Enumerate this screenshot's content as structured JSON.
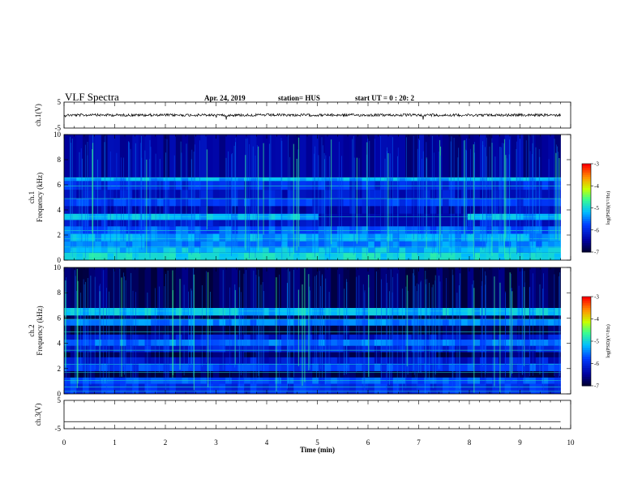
{
  "header": {
    "title": "VLF Spectra",
    "date": "Apr. 24, 2019",
    "station": "station= HUS",
    "start": "start UT =  0 : 20: 2"
  },
  "chart_data": {
    "type": "heatmap",
    "xlabel": "Time (min)",
    "x_ticks": [
      "0",
      "1",
      "2",
      "3",
      "4",
      "5",
      "6",
      "7",
      "8",
      "9",
      "10"
    ],
    "xlim": [
      0,
      10
    ],
    "data_end_min": 9.8,
    "panels": [
      {
        "name": "ch.1 waveform",
        "type": "line",
        "ylabel": "ch.1(V)",
        "ylim": [
          -5,
          5
        ],
        "y_ticks": [
          "5",
          "-5"
        ],
        "baseline": 0
      },
      {
        "name": "ch.1 spectrogram",
        "type": "heatmap",
        "ylabel_top": "ch.1",
        "ylabel": "Frequency (kHz)",
        "ylim": [
          0,
          10
        ],
        "y_ticks": [
          "0",
          "2",
          "4",
          "6",
          "8",
          "10"
        ],
        "colorbar": {
          "label": "log(PSD)(V²/Hz)",
          "range": [
            -7,
            -3
          ],
          "ticks": [
            "-3",
            "-4",
            "-5",
            "-6",
            "-7"
          ]
        },
        "bands": [
          {
            "from": 0.0,
            "to": 0.6,
            "level": 0.5
          },
          {
            "from": 0.6,
            "to": 1.0,
            "level": 0.45
          },
          {
            "from": 1.0,
            "to": 1.5,
            "level": 0.38
          },
          {
            "from": 1.5,
            "to": 2.1,
            "level": 0.42
          },
          {
            "from": 2.1,
            "to": 2.7,
            "level": 0.33
          },
          {
            "from": 2.7,
            "to": 3.2,
            "level": 0.2
          },
          {
            "from": 3.2,
            "to": 3.7,
            "level": 0.44
          },
          {
            "from": 3.7,
            "to": 4.3,
            "level": 0.14
          },
          {
            "from": 4.3,
            "to": 4.9,
            "level": 0.28
          },
          {
            "from": 4.9,
            "to": 5.6,
            "level": 0.18
          },
          {
            "from": 5.6,
            "to": 6.3,
            "level": 0.25
          },
          {
            "from": 6.3,
            "to": 6.6,
            "level": 0.42
          },
          {
            "from": 6.6,
            "to": 10.0,
            "level": 0.12
          }
        ],
        "dark_patch": {
          "t_from": 4.95,
          "t_to": 7.95,
          "f_from": 2.3,
          "f_to": 3.3
        }
      },
      {
        "name": "ch.2 spectrogram",
        "type": "heatmap",
        "ylabel_top": "ch.2",
        "ylabel": "Frequency (kHz)",
        "ylim": [
          0,
          10
        ],
        "y_ticks": [
          "0",
          "2",
          "4",
          "6",
          "8",
          "10"
        ],
        "colorbar": {
          "label": "log(PSD)(V²/Hz)",
          "range": [
            -7,
            -3
          ],
          "ticks": [
            "-3",
            "-4",
            "-5",
            "-6",
            "-7"
          ]
        },
        "bands": [
          {
            "from": 0.0,
            "to": 0.8,
            "level": 0.26
          },
          {
            "from": 0.8,
            "to": 1.3,
            "level": 0.32
          },
          {
            "from": 1.3,
            "to": 1.8,
            "level": 0.02
          },
          {
            "from": 1.8,
            "to": 2.4,
            "level": 0.3
          },
          {
            "from": 2.4,
            "to": 2.9,
            "level": 0.2
          },
          {
            "from": 2.9,
            "to": 3.3,
            "level": 0.04
          },
          {
            "from": 3.3,
            "to": 3.8,
            "level": 0.22
          },
          {
            "from": 3.8,
            "to": 4.3,
            "level": 0.36
          },
          {
            "from": 4.3,
            "to": 4.7,
            "level": 0.2
          },
          {
            "from": 4.7,
            "to": 5.4,
            "level": 0.02
          },
          {
            "from": 5.4,
            "to": 5.9,
            "level": 0.38
          },
          {
            "from": 5.9,
            "to": 6.2,
            "level": 0.04
          },
          {
            "from": 6.2,
            "to": 6.8,
            "level": 0.45
          },
          {
            "from": 6.8,
            "to": 10.0,
            "level": 0.04
          }
        ]
      },
      {
        "name": "ch.3 waveform",
        "type": "line",
        "ylabel": "ch.3(V)",
        "ylim": [
          -5,
          5
        ],
        "y_ticks": [
          "5",
          "-5"
        ],
        "baseline": -2.5
      }
    ]
  }
}
